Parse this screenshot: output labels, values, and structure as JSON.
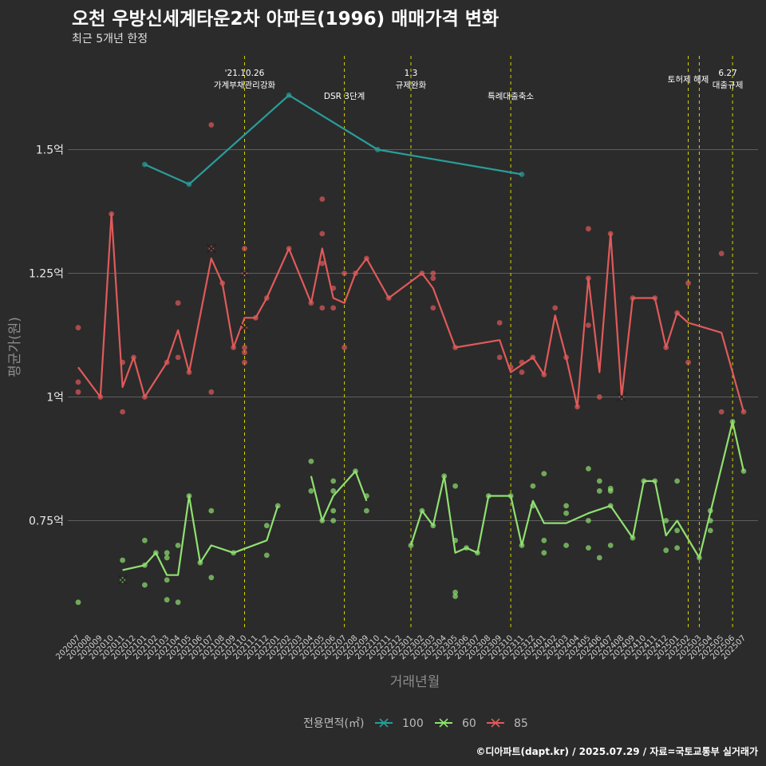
{
  "header": {
    "title": "오천 우방신세계타운2차 아파트(1996) 매매가격 변화",
    "subtitle": "최근 5개년 한정"
  },
  "caption": "©디아파트(dapt.kr) / 2025.07.29 / 자료=국토교통부 실거래가",
  "colors": {
    "background": "#2b2b2b",
    "grid": "#5e5e5e",
    "event_line": "#d4d400",
    "s100": "#2a9d9a",
    "s60": "#90e070",
    "s85": "#e05a5a"
  },
  "chart_data": {
    "type": "line",
    "xlabel": "거래년월",
    "ylabel": "평균가(원)",
    "ylim": [
      0.5,
      1.75
    ],
    "x_ticks": [
      "202007",
      "202008",
      "202009",
      "202010",
      "202011",
      "202012",
      "202101",
      "202102",
      "202103",
      "202104",
      "202105",
      "202106",
      "202107",
      "202108",
      "202109",
      "202110",
      "202111",
      "202112",
      "202201",
      "202202",
      "202203",
      "202204",
      "202205",
      "202206",
      "202207",
      "202208",
      "202209",
      "202210",
      "202211",
      "202212",
      "202301",
      "202302",
      "202303",
      "202304",
      "202305",
      "202306",
      "202307",
      "202308",
      "202309",
      "202310",
      "202311",
      "202312",
      "202401",
      "202402",
      "202403",
      "202404",
      "202405",
      "202406",
      "202407",
      "202408",
      "202409",
      "202410",
      "202411",
      "202412",
      "202501",
      "202502",
      "202503",
      "202504",
      "202505",
      "202506",
      "202507"
    ],
    "y_ticks": [
      {
        "value": 0.75,
        "label": "0.75억"
      },
      {
        "value": 1.0,
        "label": "1억"
      },
      {
        "value": 1.25,
        "label": "1.25억"
      },
      {
        "value": 1.5,
        "label": "1.5억"
      }
    ],
    "legend": {
      "title": "전용면적(㎡)",
      "position": "bottom",
      "items": [
        "100",
        "60",
        "85"
      ]
    },
    "events": [
      {
        "x": "202110",
        "label": "'21.10.26\n가계부채관리강화",
        "row": 0
      },
      {
        "x": "202207",
        "label": "DSR 3단계",
        "row": 1
      },
      {
        "x": "202301",
        "label": "1.3\n규제완화",
        "row": 0
      },
      {
        "x": "202310",
        "label": "특례대출축소",
        "row": 1
      },
      {
        "x": "202502",
        "label": "토허제 해제",
        "row": 0
      },
      {
        "x": "202503",
        "label": "",
        "row": 0
      },
      {
        "x": "202506",
        "label": "6.27\n대출규제",
        "row": 0
      }
    ],
    "series": [
      {
        "name": "100",
        "color_key": "s100",
        "line": [
          [
            "202101",
            1.47
          ],
          [
            "202105",
            1.43
          ],
          [
            "202202",
            1.61
          ],
          [
            "202210",
            1.5
          ],
          [
            "202311",
            1.45
          ]
        ],
        "points": [
          [
            "202101",
            1.47
          ],
          [
            "202105",
            1.43
          ],
          [
            "202202",
            1.61
          ],
          [
            "202210",
            1.5
          ],
          [
            "202311",
            1.45
          ]
        ],
        "cancelled": []
      },
      {
        "name": "60",
        "color_key": "s60",
        "line": [
          [
            "202011",
            0.65
          ],
          [
            "202101",
            0.66
          ],
          [
            "202102",
            0.685
          ],
          [
            "202103",
            0.64
          ],
          [
            "202104",
            0.64
          ],
          [
            "202105",
            0.8
          ],
          [
            "202106",
            0.665
          ],
          [
            "202107",
            0.7
          ],
          [
            "202109",
            0.685
          ],
          [
            "202112",
            0.71
          ],
          [
            "202201",
            0.78
          ],
          null,
          [
            "202204",
            0.84
          ],
          [
            "202205",
            0.75
          ],
          [
            "202206",
            0.8
          ],
          [
            "202208",
            0.85
          ],
          [
            "202209",
            0.79
          ],
          null,
          [
            "202301",
            0.7
          ],
          [
            "202302",
            0.77
          ],
          [
            "202303",
            0.74
          ],
          [
            "202304",
            0.84
          ],
          [
            "202305",
            0.685
          ],
          [
            "202306",
            0.695
          ],
          [
            "202307",
            0.685
          ],
          [
            "202308",
            0.8
          ],
          [
            "202310",
            0.8
          ],
          [
            "202311",
            0.7
          ],
          [
            "202312",
            0.79
          ],
          [
            "202401",
            0.745
          ],
          [
            "202403",
            0.745
          ],
          [
            "202405",
            0.765
          ],
          [
            "202407",
            0.78
          ],
          [
            "202409",
            0.715
          ],
          [
            "202410",
            0.83
          ],
          [
            "202411",
            0.83
          ],
          [
            "202412",
            0.72
          ],
          [
            "202501",
            0.75
          ],
          [
            "202503",
            0.675
          ],
          [
            "202506",
            0.95
          ],
          [
            "202507",
            0.85
          ]
        ],
        "points": [
          [
            "202007",
            0.585
          ],
          [
            "202011",
            0.63
          ],
          [
            "202011",
            0.67
          ],
          [
            "202101",
            0.66
          ],
          [
            "202101",
            0.71
          ],
          [
            "202101",
            0.62
          ],
          [
            "202102",
            0.685
          ],
          [
            "202103",
            0.685
          ],
          [
            "202103",
            0.675
          ],
          [
            "202103",
            0.63
          ],
          [
            "202103",
            0.59
          ],
          [
            "202104",
            0.7
          ],
          [
            "202104",
            0.585
          ],
          [
            "202105",
            0.8
          ],
          [
            "202106",
            0.665
          ],
          [
            "202107",
            0.77
          ],
          [
            "202107",
            0.635
          ],
          [
            "202109",
            0.685
          ],
          [
            "202112",
            0.74
          ],
          [
            "202112",
            0.68
          ],
          [
            "202201",
            0.78
          ],
          [
            "202204",
            0.87
          ],
          [
            "202204",
            0.81
          ],
          [
            "202205",
            0.75
          ],
          [
            "202206",
            0.83
          ],
          [
            "202206",
            0.81
          ],
          [
            "202206",
            0.77
          ],
          [
            "202206",
            0.75
          ],
          [
            "202208",
            0.85
          ],
          [
            "202209",
            0.8
          ],
          [
            "202209",
            0.77
          ],
          [
            "202301",
            0.7
          ],
          [
            "202302",
            0.77
          ],
          [
            "202303",
            0.74
          ],
          [
            "202304",
            0.84
          ],
          [
            "202305",
            0.82
          ],
          [
            "202305",
            0.71
          ],
          [
            "202305",
            0.605
          ],
          [
            "202305",
            0.597
          ],
          [
            "202306",
            0.695
          ],
          [
            "202307",
            0.685
          ],
          [
            "202308",
            0.8
          ],
          [
            "202310",
            0.8
          ],
          [
            "202311",
            0.7
          ],
          [
            "202312",
            0.82
          ],
          [
            "202312",
            0.78
          ],
          [
            "202401",
            0.845
          ],
          [
            "202401",
            0.71
          ],
          [
            "202401",
            0.685
          ],
          [
            "202403",
            0.78
          ],
          [
            "202403",
            0.765
          ],
          [
            "202403",
            0.7
          ],
          [
            "202405",
            0.855
          ],
          [
            "202405",
            0.75
          ],
          [
            "202405",
            0.695
          ],
          [
            "202406",
            0.83
          ],
          [
            "202406",
            0.81
          ],
          [
            "202406",
            0.675
          ],
          [
            "202407",
            0.815
          ],
          [
            "202407",
            0.81
          ],
          [
            "202407",
            0.78
          ],
          [
            "202407",
            0.7
          ],
          [
            "202409",
            0.715
          ],
          [
            "202410",
            0.83
          ],
          [
            "202411",
            0.83
          ],
          [
            "202412",
            0.75
          ],
          [
            "202412",
            0.69
          ],
          [
            "202501",
            0.83
          ],
          [
            "202501",
            0.73
          ],
          [
            "202501",
            0.695
          ],
          [
            "202503",
            0.675
          ],
          [
            "202504",
            0.77
          ],
          [
            "202504",
            0.75
          ],
          [
            "202504",
            0.73
          ],
          [
            "202506",
            0.95
          ],
          [
            "202507",
            0.85
          ]
        ],
        "cancelled": [
          [
            "202011",
            0.63
          ]
        ]
      },
      {
        "name": "85",
        "color_key": "s85",
        "line": [
          [
            "202007",
            1.06
          ],
          [
            "202009",
            1.0
          ],
          [
            "202010",
            1.37
          ],
          [
            "202011",
            1.02
          ],
          [
            "202012",
            1.08
          ],
          [
            "202101",
            1.0
          ],
          [
            "202103",
            1.07
          ],
          [
            "202104",
            1.135
          ],
          [
            "202105",
            1.05
          ],
          [
            "202107",
            1.28
          ],
          [
            "202108",
            1.23
          ],
          [
            "202109",
            1.1
          ],
          [
            "202110",
            1.16
          ],
          [
            "202111",
            1.16
          ],
          [
            "202112",
            1.2
          ],
          [
            "202202",
            1.3
          ],
          [
            "202204",
            1.19
          ],
          [
            "202205",
            1.3
          ],
          [
            "202206",
            1.2
          ],
          [
            "202207",
            1.19
          ],
          [
            "202208",
            1.25
          ],
          [
            "202209",
            1.28
          ],
          [
            "202211",
            1.2
          ],
          [
            "202302",
            1.25
          ],
          [
            "202303",
            1.22
          ],
          [
            "202305",
            1.1
          ],
          [
            "202309",
            1.115
          ],
          [
            "202310",
            1.05
          ],
          [
            "202312",
            1.08
          ],
          [
            "202401",
            1.045
          ],
          [
            "202402",
            1.165
          ],
          [
            "202403",
            1.08
          ],
          [
            "202404",
            0.98
          ],
          [
            "202405",
            1.24
          ],
          [
            "202406",
            1.05
          ],
          [
            "202407",
            1.33
          ],
          [
            "202408",
            1.0
          ],
          [
            "202409",
            1.2
          ],
          [
            "202411",
            1.2
          ],
          [
            "202412",
            1.1
          ],
          [
            "202501",
            1.17
          ],
          [
            "202502",
            1.15
          ],
          [
            "202505",
            1.13
          ],
          [
            "202507",
            0.97
          ]
        ],
        "points": [
          [
            "202007",
            1.14
          ],
          [
            "202007",
            1.03
          ],
          [
            "202007",
            1.01
          ],
          [
            "202009",
            1.0
          ],
          [
            "202010",
            1.37
          ],
          [
            "202011",
            1.07
          ],
          [
            "202011",
            0.97
          ],
          [
            "202012",
            1.08
          ],
          [
            "202101",
            1.0
          ],
          [
            "202103",
            1.07
          ],
          [
            "202104",
            1.19
          ],
          [
            "202104",
            1.08
          ],
          [
            "202105",
            1.05
          ],
          [
            "202107",
            1.55
          ],
          [
            "202107",
            1.3
          ],
          [
            "202107",
            1.01
          ],
          [
            "202108",
            1.23
          ],
          [
            "202109",
            1.1
          ],
          [
            "202110",
            1.3
          ],
          [
            "202110",
            1.25
          ],
          [
            "202110",
            1.14
          ],
          [
            "202110",
            1.1
          ],
          [
            "202110",
            1.09
          ],
          [
            "202110",
            1.07
          ],
          [
            "202111",
            1.16
          ],
          [
            "202112",
            1.2
          ],
          [
            "202202",
            1.3
          ],
          [
            "202204",
            1.19
          ],
          [
            "202205",
            1.4
          ],
          [
            "202205",
            1.33
          ],
          [
            "202205",
            1.27
          ],
          [
            "202205",
            1.18
          ],
          [
            "202206",
            1.22
          ],
          [
            "202206",
            1.18
          ],
          [
            "202207",
            1.25
          ],
          [
            "202207",
            1.1
          ],
          [
            "202208",
            1.25
          ],
          [
            "202209",
            1.28
          ],
          [
            "202211",
            1.2
          ],
          [
            "202302",
            1.25
          ],
          [
            "202303",
            1.25
          ],
          [
            "202303",
            1.24
          ],
          [
            "202303",
            1.18
          ],
          [
            "202305",
            1.1
          ],
          [
            "202309",
            1.15
          ],
          [
            "202309",
            1.08
          ],
          [
            "202310",
            1.06
          ],
          [
            "202311",
            1.07
          ],
          [
            "202311",
            1.05
          ],
          [
            "202312",
            1.08
          ],
          [
            "202401",
            1.045
          ],
          [
            "202402",
            1.18
          ],
          [
            "202403",
            1.08
          ],
          [
            "202404",
            0.98
          ],
          [
            "202405",
            1.34
          ],
          [
            "202405",
            1.24
          ],
          [
            "202405",
            1.145
          ],
          [
            "202406",
            1.0
          ],
          [
            "202407",
            1.33
          ],
          [
            "202408",
            1.0
          ],
          [
            "202409",
            1.2
          ],
          [
            "202411",
            1.2
          ],
          [
            "202412",
            1.1
          ],
          [
            "202501",
            1.17
          ],
          [
            "202502",
            1.23
          ],
          [
            "202502",
            1.07
          ],
          [
            "202505",
            1.29
          ],
          [
            "202505",
            0.97
          ],
          [
            "202507",
            0.97
          ]
        ],
        "cancelled": [
          [
            "202107",
            1.3
          ],
          [
            "202110",
            1.25
          ],
          [
            "202110",
            1.14
          ],
          [
            "202408",
            1.0
          ]
        ]
      }
    ]
  }
}
